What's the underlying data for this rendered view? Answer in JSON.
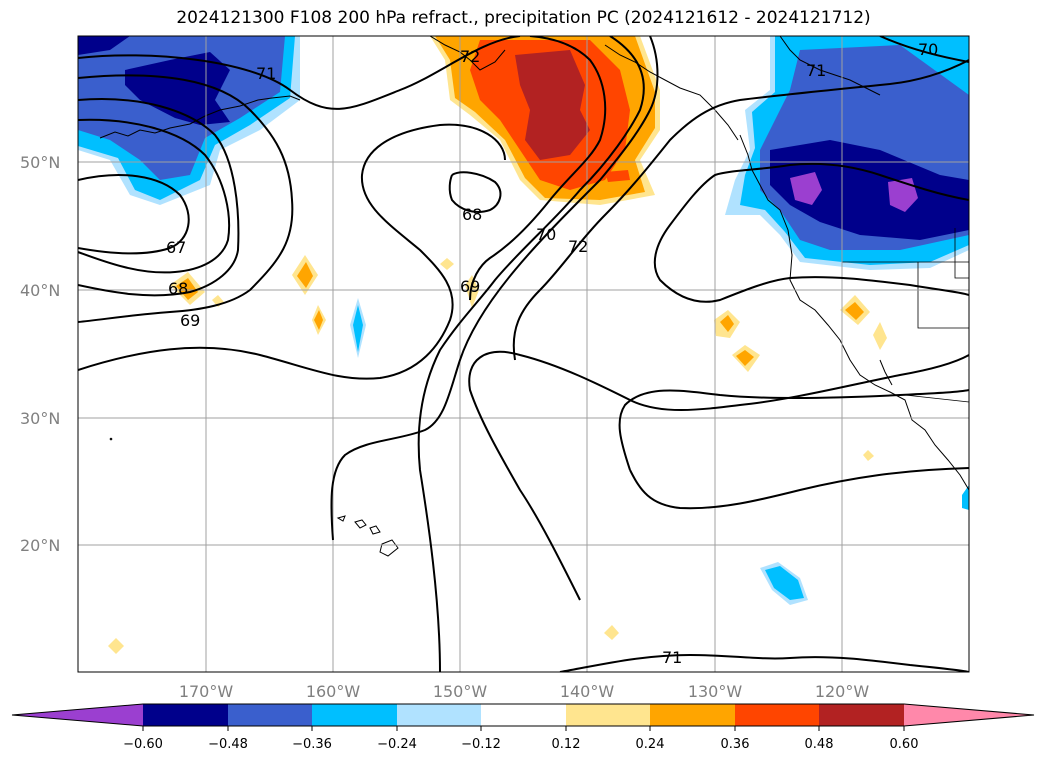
{
  "title": "2024121300 F108 200 hPa refract., precipitation PC (2024121612 - 2024121712)",
  "lat_labels": [
    "50°N",
    "40°N",
    "30°N",
    "20°N"
  ],
  "lon_labels": [
    "170°W",
    "160°W",
    "150°W",
    "140°W",
    "130°W",
    "120°W"
  ],
  "contour_labels": [
    "71",
    "72",
    "70",
    "71",
    "68",
    "67",
    "68",
    "69",
    "69",
    "70",
    "72",
    "71"
  ],
  "colorbar": {
    "tick_labels": [
      "−0.60",
      "−0.48",
      "−0.36",
      "−0.24",
      "−0.12",
      "0.12",
      "0.24",
      "0.36",
      "0.48",
      "0.60"
    ],
    "colors": [
      "#9b3fd0",
      "#00008b",
      "#3a5fcd",
      "#00bfff",
      "#b0e2ff",
      "#ffffff",
      "#ffe58f",
      "#ffa500",
      "#ff4500",
      "#b22222",
      "#ff88aa"
    ]
  },
  "colors": {
    "purple": "#9b3fd0",
    "navy": "#00008b",
    "royal": "#3a5fcd",
    "sky": "#00bfff",
    "pale_blue": "#b0e2ff",
    "pale_yellow": "#ffe58f",
    "orange": "#ffa500",
    "red_orange": "#ff4500",
    "firebrick": "#b22222",
    "pink": "#ff88aa"
  }
}
